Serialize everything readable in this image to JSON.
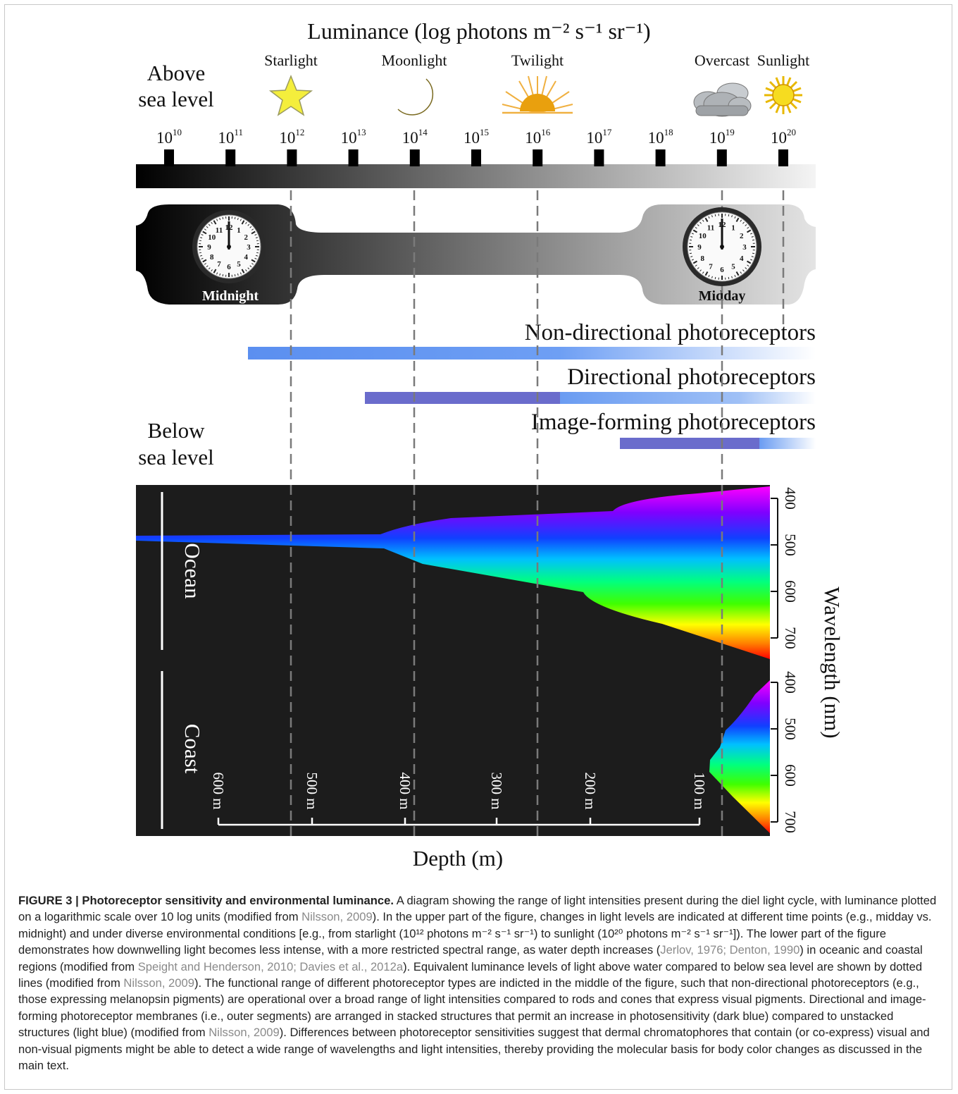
{
  "figure": {
    "title": "Luminance (log photons m⁻² s⁻¹ sr⁻¹)",
    "above_label": [
      "Above",
      "sea level"
    ],
    "below_label": [
      "Below",
      "sea level"
    ],
    "conditions": [
      "Starlight",
      "Moonlight",
      "Twilight",
      "Overcast",
      "Sunlight"
    ],
    "scale_ticks": [
      {
        "base": 10,
        "exponent": 10
      },
      {
        "base": 10,
        "exponent": 11
      },
      {
        "base": 10,
        "exponent": 12
      },
      {
        "base": 10,
        "exponent": 13
      },
      {
        "base": 10,
        "exponent": 14
      },
      {
        "base": 10,
        "exponent": 15
      },
      {
        "base": 10,
        "exponent": 16
      },
      {
        "base": 10,
        "exponent": 17
      },
      {
        "base": 10,
        "exponent": 18
      },
      {
        "base": 10,
        "exponent": 19
      },
      {
        "base": 10,
        "exponent": 20
      }
    ],
    "clock_numerals": [
      "12",
      "1",
      "2",
      "3",
      "4",
      "5",
      "6",
      "7",
      "8",
      "9",
      "10",
      "11"
    ],
    "time_labels": [
      "Midnight",
      "Midday"
    ],
    "photoreceptors": [
      "Non-directional photoreceptors",
      "Directional photoreceptors",
      "Image-forming photoreceptors"
    ],
    "regions": [
      "Ocean",
      "Coast"
    ],
    "wavelength_ticks": [
      400,
      500,
      600,
      700
    ],
    "wavelength_label": "Wavelength (nm)",
    "depth_ticks": [
      "600 m",
      "500 m",
      "400 m",
      "300 m",
      "200 m",
      "100 m"
    ],
    "depth_label": "Depth (m)"
  },
  "caption": {
    "label": "FIGURE 3 | Photoreceptor sensitivity and environmental luminance.",
    "segments": [
      {
        "text": " A diagram showing the range of light intensities present during the diel light cycle, with luminance plotted on a logarithmic scale over 10 log units (modified from ",
        "citation": false
      },
      {
        "text": "Nilsson, 2009",
        "citation": true
      },
      {
        "text": "). In the upper part of the figure, changes in light levels are indicated at different time points (e.g., midday vs. midnight) and under diverse environmental conditions [e.g., from starlight (10¹² photons m⁻² s⁻¹ sr⁻¹) to sunlight (10²⁰ photons m⁻² s⁻¹ sr⁻¹]). The lower part of the figure demonstrates how downwelling light becomes less intense, with a more restricted spectral range, as water depth increases (",
        "citation": false
      },
      {
        "text": "Jerlov, 1976; Denton, 1990",
        "citation": true
      },
      {
        "text": ") in oceanic and coastal regions (modified from ",
        "citation": false
      },
      {
        "text": "Speight and Henderson, 2010; Davies et al., 2012a",
        "citation": true
      },
      {
        "text": "). Equivalent luminance levels of light above water compared to below sea level are shown by dotted lines (modified from ",
        "citation": false
      },
      {
        "text": "Nilsson, 2009",
        "citation": true
      },
      {
        "text": "). The functional range of different photoreceptor types are indicted in the middle of the figure, such that non-directional photoreceptors (e.g., those expressing melanopsin pigments) are operational over a broad range of light intensities compared to rods and cones that express visual pigments. Directional and image-forming photoreceptor membranes (i.e., outer segments) are arranged in stacked structures that permit an increase in photosensitivity (dark blue) compared to unstacked structures (light blue) (modified from ",
        "citation": false
      },
      {
        "text": "Nilsson, 2009",
        "citation": true
      },
      {
        "text": "). Differences between photoreceptor sensitivities suggest that dermal chromatophores that contain (or co-express) visual and non-visual pigments might be able to detect a wide range of wavelengths and light intensities, thereby providing the molecular basis for body color changes as discussed in the main text.",
        "citation": false
      }
    ]
  }
}
